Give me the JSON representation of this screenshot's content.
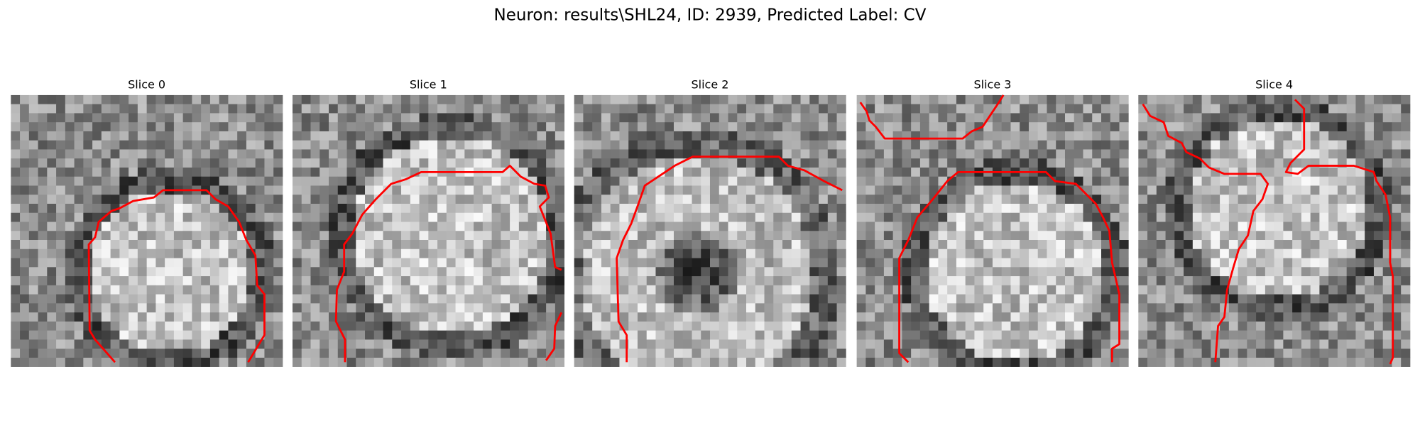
{
  "title": "Neuron: results\\SHL24, ID: 2939, Predicted Label: CV",
  "panels": [
    {
      "label": "Slice 0"
    },
    {
      "label": "Slice 1"
    },
    {
      "label": "Slice 2"
    },
    {
      "label": "Slice 3"
    },
    {
      "label": "Slice 4"
    }
  ]
}
